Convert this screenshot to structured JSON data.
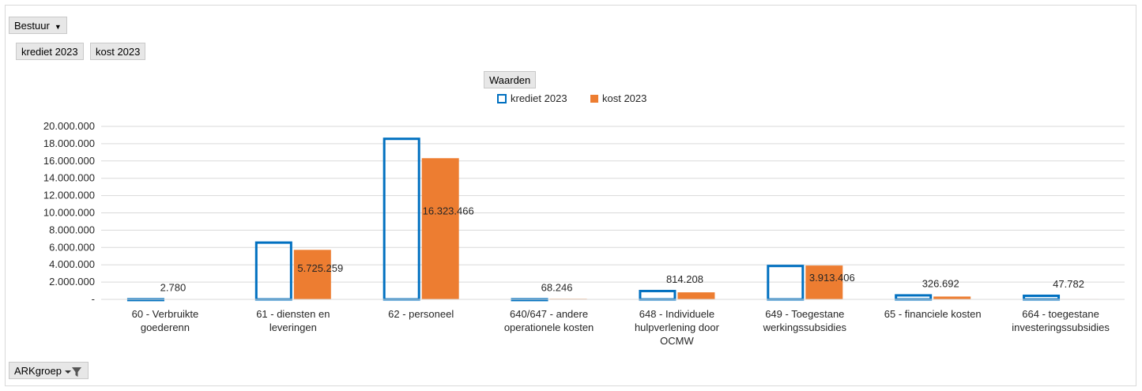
{
  "filters": {
    "bestuur_label": "Bestuur",
    "series_buttons": [
      "krediet 2023",
      "kost 2023"
    ],
    "waarden_label": "Waarden",
    "arkgroep_label": "ARKgroep"
  },
  "colors": {
    "krediet": "#0070c0",
    "kost": "#ed7d31",
    "gridline": "#d9d9d9",
    "button_bg": "#e7e7e7"
  },
  "chart_data": {
    "type": "bar",
    "categories": [
      [
        "60 - Verbruikte",
        "goederenn"
      ],
      [
        "61 - diensten en",
        "leveringen"
      ],
      [
        "62 - personeel"
      ],
      [
        "640/647 - andere",
        "operationele kosten"
      ],
      [
        "648 - Individuele",
        "hulpverlening door",
        "OCMW"
      ],
      [
        "649 -  Toegestane",
        "werkingssubsidies"
      ],
      [
        "65 - financiele kosten"
      ],
      [
        "664 -  toegestane",
        "investeringssubsidies"
      ]
    ],
    "series": [
      {
        "name": "krediet 2023",
        "style": "outline",
        "values": [
          150000,
          6700000,
          18700000,
          150000,
          1100000,
          4000000,
          600000,
          550000
        ]
      },
      {
        "name": "kost 2023",
        "style": "filled",
        "values": [
          2780,
          5725259,
          16323466,
          68246,
          814208,
          3913406,
          326692,
          47782
        ]
      }
    ],
    "data_labels": [
      "2.780",
      "5.725.259",
      "16.323.466",
      "68.246",
      "814.208",
      "3.913.406",
      "326.692",
      "47.782"
    ],
    "yticks": [
      "-",
      "2.000.000",
      "4.000.000",
      "6.000.000",
      "8.000.000",
      "10.000.000",
      "12.000.000",
      "14.000.000",
      "16.000.000",
      "18.000.000",
      "20.000.000"
    ],
    "ylim": [
      0,
      20000000
    ],
    "grid": true,
    "legend_position": "top-center"
  }
}
